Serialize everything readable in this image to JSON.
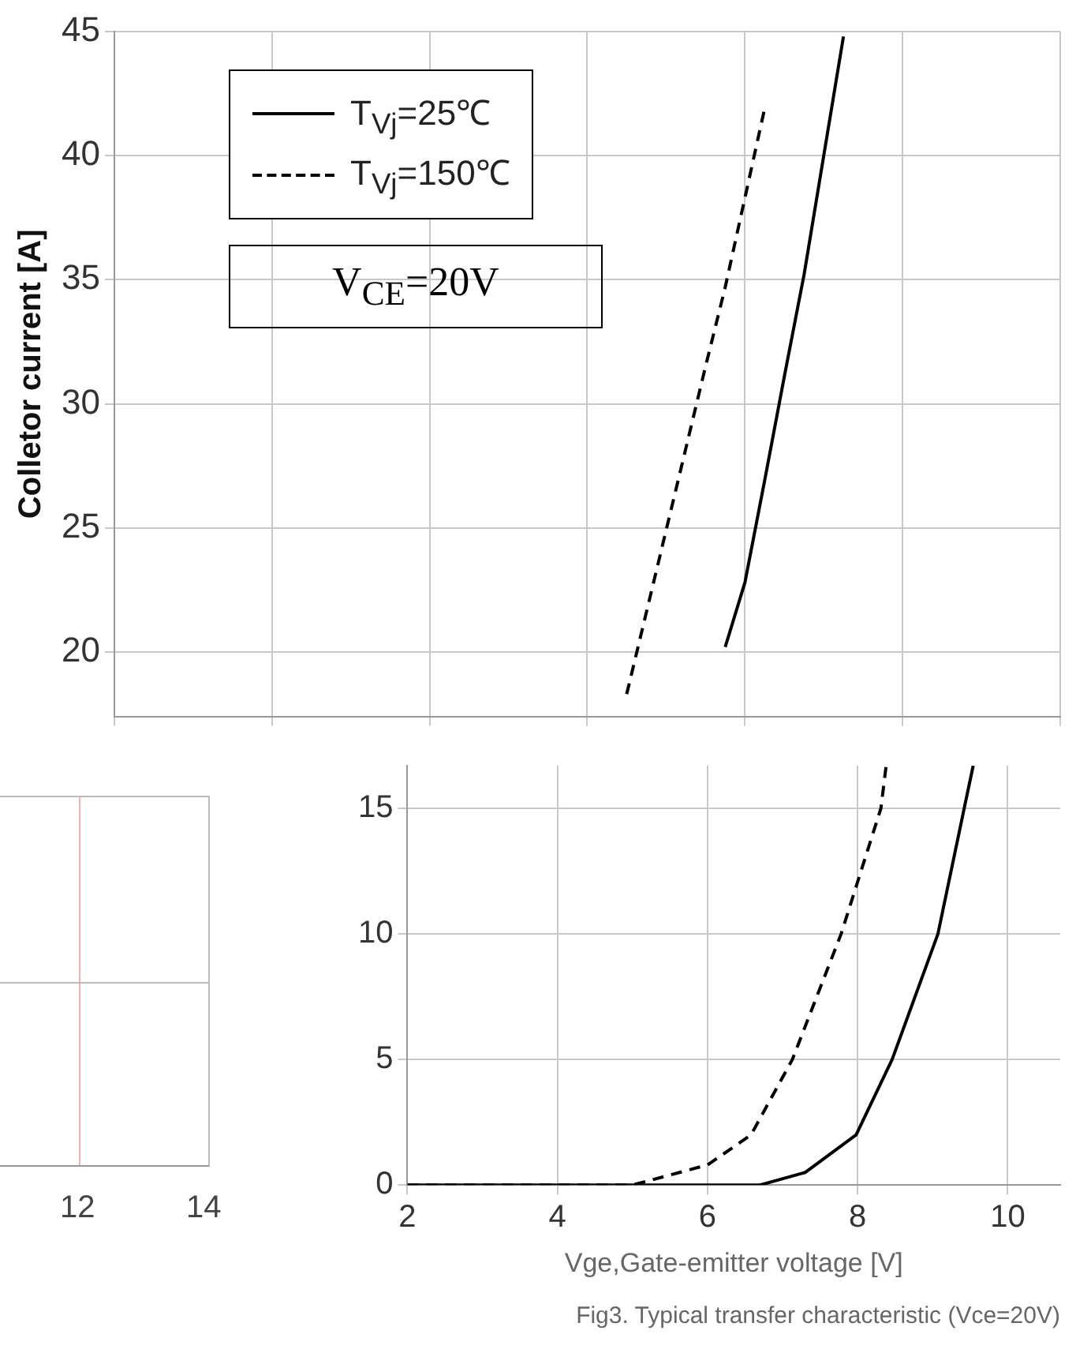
{
  "chart_data": [
    {
      "type": "line",
      "ylabel": "Colletor current [A]",
      "categories": [
        null,
        null,
        null,
        null,
        null,
        null,
        null,
        null,
        null,
        null,
        null,
        null,
        null,
        null,
        null,
        null,
        null,
        null,
        null,
        null,
        null,
        null,
        null,
        null,
        null,
        null,
        null,
        null,
        null,
        null,
        null,
        null,
        null,
        null,
        null,
        null,
        null,
        null,
        null,
        null,
        null,
        null,
        null,
        null,
        null,
        null,
        null,
        null,
        null
      ],
      "ylim": [
        17.4,
        45
      ],
      "yticks": [
        20,
        25,
        30,
        35,
        40,
        45
      ],
      "tick_labels": "y",
      "grid": true,
      "legend": "top left",
      "annotations": [
        "V$_{CE}$=20V"
      ],
      "series": [
        {
          "name": "T$_{Vj}$=25℃",
          "color": "#000000",
          "line_style": "solid",
          "values": [
            null,
            null,
            null,
            null,
            null,
            null,
            null,
            null,
            null,
            null,
            null,
            null,
            null,
            null,
            null,
            null,
            null,
            null,
            null,
            null,
            null,
            null,
            null,
            null,
            null,
            null,
            null,
            null,
            null,
            null,
            null,
            20.2,
            22.8,
            26.9,
            31.1,
            35.2,
            40.0,
            44.8,
            null,
            null,
            null,
            null,
            null,
            null,
            null,
            null,
            null,
            null,
            null
          ]
        },
        {
          "name": "T$_{Vj}$=150℃",
          "color": "#000000",
          "line_style": "dashed",
          "values": [
            null,
            null,
            null,
            null,
            null,
            null,
            null,
            null,
            null,
            null,
            null,
            null,
            null,
            null,
            null,
            null,
            null,
            null,
            null,
            null,
            null,
            null,
            null,
            null,
            null,
            null,
            18.3,
            21.6,
            24.9,
            28.2,
            31.5,
            34.7,
            38.3,
            41.9,
            null,
            null,
            null,
            null,
            null,
            null,
            null,
            null,
            null,
            null,
            null,
            null,
            null,
            null,
            null
          ]
        }
      ]
    },
    {
      "type": "line",
      "xlabel": "Vge,Gate-emitter voltage [V]",
      "xlim": [
        2,
        10.7
      ],
      "xticks": [
        2,
        4,
        6,
        8,
        10
      ],
      "ylim": [
        0,
        16.7
      ],
      "yticks": [
        0,
        5,
        10,
        15
      ],
      "grid": true,
      "annotations": [
        "Fig3. Typical transfer characteristic (Vce=20V)"
      ],
      "series": [
        {
          "color": "#000000",
          "line_style": "solid",
          "x": [
            2,
            6.7,
            7.3,
            7.98,
            8.46,
            9.07,
            9.42,
            9.54
          ],
          "values": [
            0,
            0,
            0.5,
            2,
            5,
            10,
            15,
            16.7
          ]
        },
        {
          "color": "#000000",
          "line_style": "dashed",
          "x": [
            2,
            5,
            6,
            6.58,
            7.13,
            7.78,
            8.31,
            8.38
          ],
          "values": [
            0,
            0,
            0.8,
            2,
            5,
            10,
            15,
            16.7
          ]
        }
      ]
    },
    {
      "type": "other",
      "annotations": [
        "12",
        "14"
      ]
    }
  ]
}
